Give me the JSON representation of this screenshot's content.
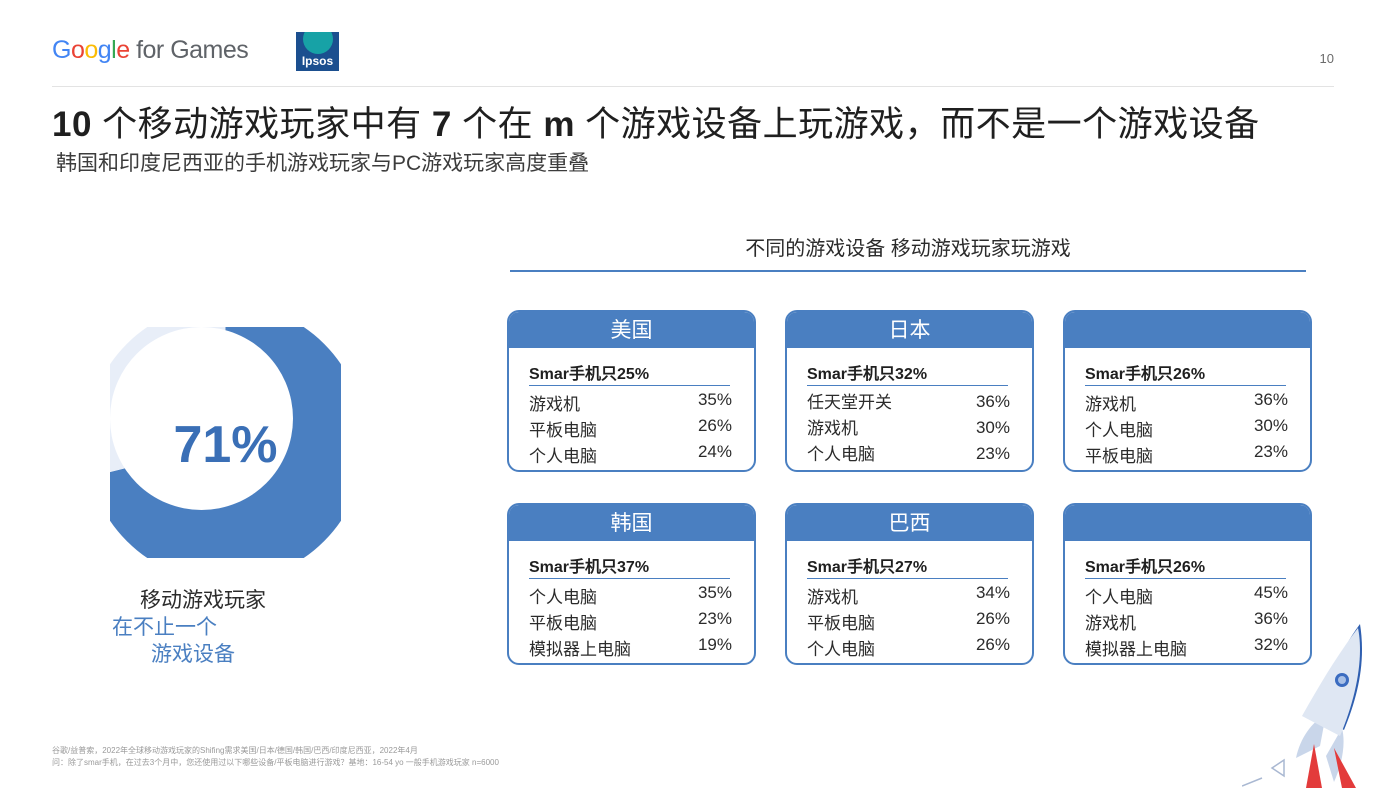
{
  "header": {
    "google_logo": {
      "g1": "G",
      "g2": "o",
      "g3": "o",
      "g4": "g",
      "g5": "l",
      "g6": "e",
      "rest": " for Games"
    },
    "ipsos_logo": "Ipsos",
    "page_number": "10"
  },
  "title": {
    "p1": "10",
    "p2": " 个移动游戏玩家中有 ",
    "p3": "7",
    "p4": " 个在 ",
    "p5": "m",
    "p6": " 个游戏设备上玩游戏，而不是一个游戏设备"
  },
  "subtitle": "韩国和印度尼西亚的手机游戏玩家与PC游戏玩家高度重叠",
  "donut": {
    "value_label": "71%",
    "percent": 71,
    "caption_line1": "移动游戏玩家",
    "caption_line2": "在不止一个",
    "caption_line3": "游戏设备",
    "color_main": "#4a7fc1",
    "color_rest": "#e8eef8"
  },
  "panel": {
    "title": "不同的游戏设备 移动游戏玩家玩游戏"
  },
  "cards": [
    {
      "country": "美国",
      "lead": "Smar手机只25%",
      "rows": [
        {
          "label": "游戏机",
          "value": "35%"
        },
        {
          "label": "平板电脑",
          "value": "26%"
        },
        {
          "label": "个人电脑",
          "value": "24%"
        }
      ]
    },
    {
      "country": "日本",
      "lead": "Smar手机只32%",
      "rows": [
        {
          "label": "任天堂开关",
          "value": "36%"
        },
        {
          "label": "游戏机",
          "value": "30%"
        },
        {
          "label": "个人电脑",
          "value": "23%"
        }
      ]
    },
    {
      "country": "",
      "lead": "Smar手机只26%",
      "rows": [
        {
          "label": "游戏机",
          "value": "36%"
        },
        {
          "label": "个人电脑",
          "value": "30%"
        },
        {
          "label": "平板电脑",
          "value": "23%"
        }
      ]
    },
    {
      "country": "韩国",
      "lead": "Smar手机只37%",
      "rows": [
        {
          "label": "个人电脑",
          "value": "35%"
        },
        {
          "label": "平板电脑",
          "value": "23%"
        },
        {
          "label": "模拟器上电脑",
          "value": "19%"
        }
      ]
    },
    {
      "country": "巴西",
      "lead": "Smar手机只27%",
      "rows": [
        {
          "label": "游戏机",
          "value": "34%"
        },
        {
          "label": "平板电脑",
          "value": "26%"
        },
        {
          "label": "个人电脑",
          "value": "26%"
        }
      ]
    },
    {
      "country": "",
      "lead": "Smar手机只26%",
      "rows": [
        {
          "label": "个人电脑",
          "value": "45%"
        },
        {
          "label": "游戏机",
          "value": "36%"
        },
        {
          "label": "模拟器上电脑",
          "value": "32%"
        }
      ]
    }
  ],
  "footnotes": {
    "line1": "谷歌/益普索，2022年全球移动游戏玩家的Shifing需求美国/日本/德国/韩国/巴西/印度尼西亚，2022年4月",
    "line2": "问：除了smar手机，在过去3个月中，您还使用过以下哪些设备/平板电脑进行游戏？基地：16-54 yo 一般手机游戏玩家 n=6000"
  },
  "colors": {
    "accent": "#4a7fc1",
    "header_rule": "#e3e3e3"
  },
  "icons": {
    "decoration": "rocket-icon"
  }
}
